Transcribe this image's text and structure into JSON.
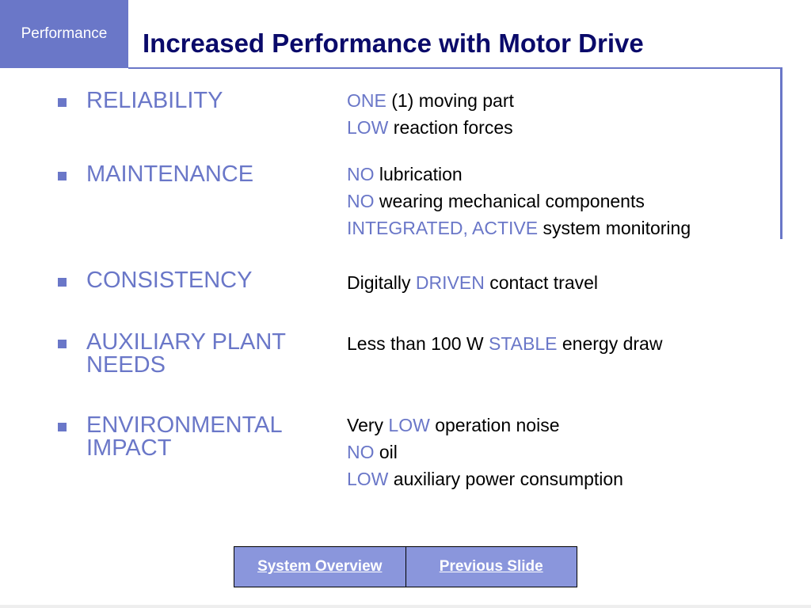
{
  "section_tag": "Performance",
  "title": "Increased Performance with Motor Drive",
  "items": [
    {
      "label": "RELIABILITY",
      "details": [
        [
          {
            "text": "ONE",
            "hl": true
          },
          {
            "text": " (1) moving part",
            "hl": false
          }
        ],
        [
          {
            "text": "LOW",
            "hl": true
          },
          {
            "text": " reaction forces",
            "hl": false
          }
        ]
      ]
    },
    {
      "label": "MAINTENANCE",
      "details": [
        [
          {
            "text": "NO",
            "hl": true
          },
          {
            "text": " lubrication",
            "hl": false
          }
        ],
        [
          {
            "text": "NO",
            "hl": true
          },
          {
            "text": " wearing mechanical components",
            "hl": false
          }
        ],
        [
          {
            "text": "INTEGRATED, ACTIVE",
            "hl": true
          },
          {
            "text": " system monitoring",
            "hl": false
          }
        ]
      ]
    },
    {
      "label": "CONSISTENCY",
      "details": [
        [
          {
            "text": "Digitally ",
            "hl": false
          },
          {
            "text": "DRIVEN",
            "hl": true
          },
          {
            "text": " contact travel",
            "hl": false
          }
        ]
      ]
    },
    {
      "label": "AUXILIARY PLANT NEEDS",
      "details": [
        [
          {
            "text": "Less than 100 W ",
            "hl": false
          },
          {
            "text": "STABLE",
            "hl": true
          },
          {
            "text": " energy draw",
            "hl": false
          }
        ]
      ]
    },
    {
      "label": "ENVIRONMENTAL IMPACT",
      "details": [
        [
          {
            "text": "Very ",
            "hl": false
          },
          {
            "text": "LOW",
            "hl": true
          },
          {
            "text": " operation noise",
            "hl": false
          }
        ],
        [
          {
            "text": "NO",
            "hl": true
          },
          {
            "text": " oil",
            "hl": false
          }
        ],
        [
          {
            "text": "LOW",
            "hl": true
          },
          {
            "text": " auxiliary power consumption",
            "hl": false
          }
        ]
      ]
    }
  ],
  "nav": {
    "system_overview": "System Overview",
    "previous_slide": "Previous Slide"
  },
  "colors": {
    "accent": "#6a77c8",
    "title": "#0a0a6a",
    "nav_bg": "#8a96dc"
  }
}
